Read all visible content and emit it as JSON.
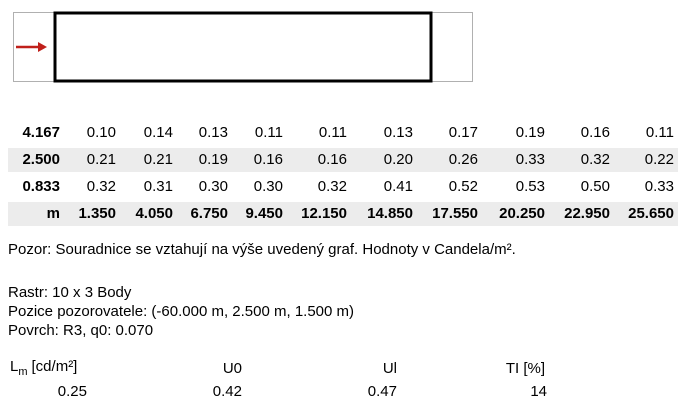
{
  "table": {
    "rows": [
      {
        "label": "4.167",
        "cells": [
          "0.10",
          "0.14",
          "0.13",
          "0.11",
          "0.11",
          "0.13",
          "0.17",
          "0.19",
          "0.16",
          "0.11"
        ]
      },
      {
        "label": "2.500",
        "cells": [
          "0.21",
          "0.21",
          "0.19",
          "0.16",
          "0.16",
          "0.20",
          "0.26",
          "0.33",
          "0.32",
          "0.22"
        ]
      },
      {
        "label": "0.833",
        "cells": [
          "0.32",
          "0.31",
          "0.30",
          "0.30",
          "0.32",
          "0.41",
          "0.52",
          "0.53",
          "0.50",
          "0.33"
        ]
      },
      {
        "label": "m",
        "cells": [
          "1.350",
          "4.050",
          "6.750",
          "9.450",
          "12.150",
          "14.850",
          "17.550",
          "20.250",
          "22.950",
          "25.650"
        ]
      }
    ]
  },
  "note": "Pozor: Souradnice se vztahují na výše uvedený graf. Hodnoty v Candela/m².",
  "info": [
    "Rastr: 10 x 3 Body",
    "Pozice pozorovatele: (-60.000 m, 2.500 m, 1.500 m)",
    "Povrch: R3, q0: 0.070"
  ],
  "summary": {
    "lm_symbol": "L",
    "lm_subscript": "m",
    "lm_unit": "[cd/m²]",
    "headers": [
      "U0",
      "Ul",
      "TI [%]"
    ],
    "values": [
      "0.25",
      "0.42",
      "0.47",
      "14"
    ]
  }
}
